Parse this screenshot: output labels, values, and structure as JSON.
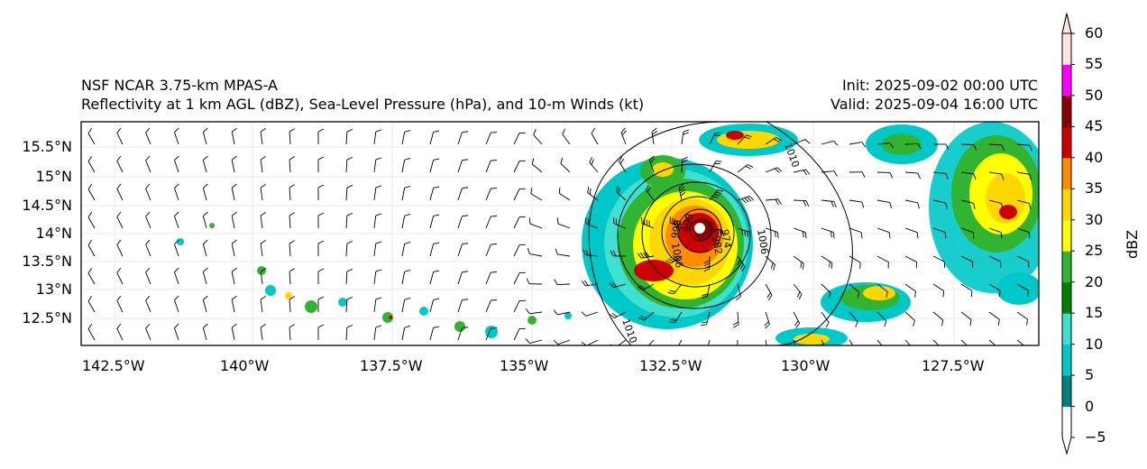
{
  "header": {
    "model": "NSF NCAR 3.75-km MPAS-A",
    "fields": "Reflectivity at 1 km AGL (dBZ), Sea-Level Pressure (hPa), and 10-m Winds (kt)",
    "init": "Init: 2025-09-02 00:00 UTC",
    "valid": "Valid: 2025-09-04 16:00 UTC"
  },
  "map": {
    "lat_labels": [
      "15.5°N",
      "15°N",
      "14.5°N",
      "14°N",
      "13.5°N",
      "13°N",
      "12.5°N"
    ],
    "lon_labels": [
      "142.5°W",
      "140°W",
      "137.5°W",
      "135°W",
      "132.5°W",
      "130°W",
      "127.5°W"
    ],
    "contour_labels": [
      "1010",
      "1006",
      "1010",
      "1006",
      "998",
      "990",
      "982",
      "974"
    ],
    "storm_center": {
      "lon": -131.9,
      "lat": 14.0
    },
    "lon_range": [
      -143.0,
      -126.0
    ],
    "lat_range": [
      12.0,
      15.9
    ]
  },
  "colorbar": {
    "label": "dBZ",
    "ticks": [
      "60",
      "55",
      "50",
      "45",
      "40",
      "35",
      "30",
      "25",
      "20",
      "15",
      "10",
      "5",
      "0",
      "−5"
    ],
    "colors": [
      "#ffffff",
      "#008080",
      "#00c8c8",
      "#40e0d0",
      "#008000",
      "#32b432",
      "#ffff00",
      "#ffd700",
      "#ff8c00",
      "#cc0000",
      "#8b0000",
      "#ff00ff",
      "#ffe4e1"
    ]
  }
}
